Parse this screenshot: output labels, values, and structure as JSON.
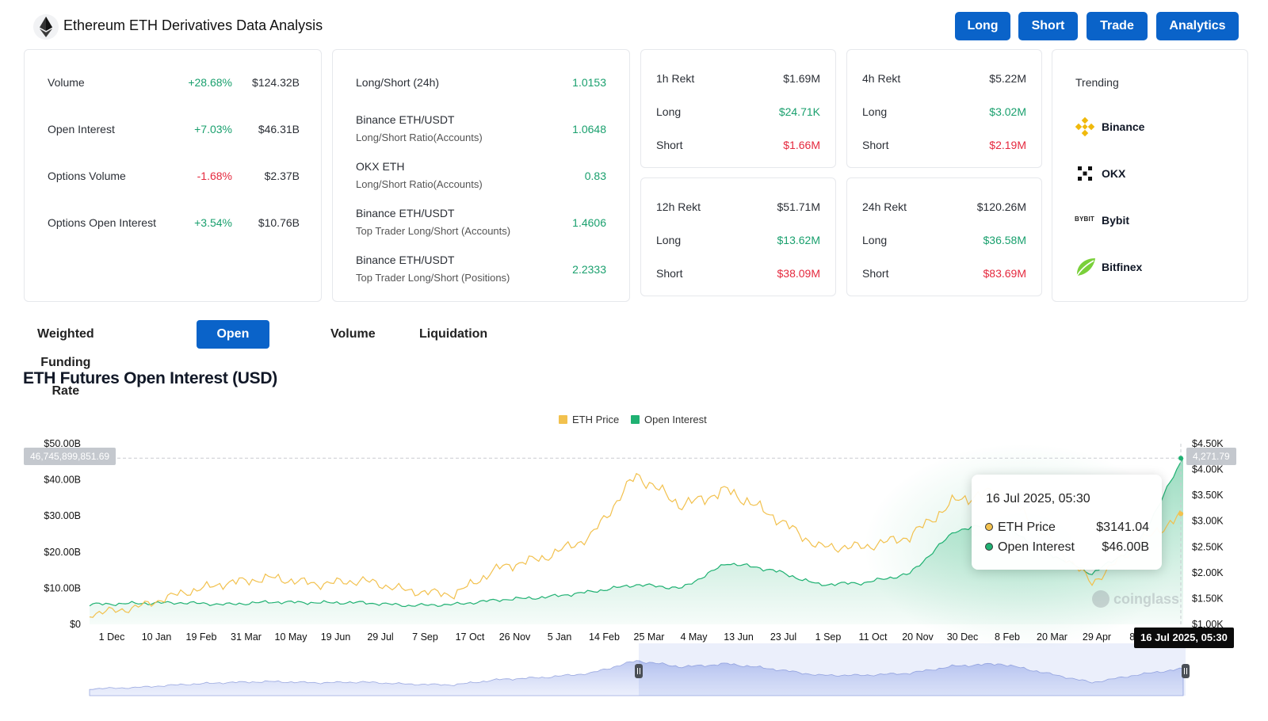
{
  "header": {
    "title": "Ethereum ETH Derivatives Data Analysis",
    "buttons": [
      {
        "label": "Long"
      },
      {
        "label": "Short"
      },
      {
        "label": "Trade"
      },
      {
        "label": "Analytics"
      }
    ]
  },
  "overview": [
    {
      "label": "Volume",
      "change": "+28.68%",
      "value": "$124.32B",
      "direction": "up"
    },
    {
      "label": "Open Interest",
      "change": "+7.03%",
      "value": "$46.31B",
      "direction": "up"
    },
    {
      "label": "Options Volume",
      "change": "-1.68%",
      "value": "$2.37B",
      "direction": "down"
    },
    {
      "label": "Options Open Interest",
      "change": "+3.54%",
      "value": "$10.76B",
      "direction": "up"
    }
  ],
  "ratios": [
    {
      "line1": "Long/Short (24h)",
      "line2": "",
      "value": "1.0153"
    },
    {
      "line1": "Binance ETH/USDT",
      "line2": "Long/Short Ratio(Accounts)",
      "value": "1.0648"
    },
    {
      "line1": "OKX ETH",
      "line2": "Long/Short Ratio(Accounts)",
      "value": "0.83"
    },
    {
      "line1": "Binance ETH/USDT",
      "line2": "Top Trader Long/Short (Accounts)",
      "value": "1.4606"
    },
    {
      "line1": "Binance ETH/USDT",
      "line2": "Top Trader Long/Short (Positions)",
      "value": "2.2333"
    }
  ],
  "rekt": [
    {
      "label": "1h Rekt",
      "total": "$1.69M",
      "long_label": "Long",
      "long": "$24.71K",
      "short_label": "Short",
      "short": "$1.66M"
    },
    {
      "label": "4h Rekt",
      "total": "$5.22M",
      "long_label": "Long",
      "long": "$3.02M",
      "short_label": "Short",
      "short": "$2.19M"
    },
    {
      "label": "12h Rekt",
      "total": "$51.71M",
      "long_label": "Long",
      "long": "$13.62M",
      "short_label": "Short",
      "short": "$38.09M"
    },
    {
      "label": "24h Rekt",
      "total": "$120.26M",
      "long_label": "Long",
      "long": "$36.58M",
      "short_label": "Short",
      "short": "$83.69M"
    }
  ],
  "trending": {
    "title": "Trending",
    "items": [
      {
        "name": "Binance",
        "icon": "binance-icon"
      },
      {
        "name": "OKX",
        "icon": "okx-icon"
      },
      {
        "name": "Bybit",
        "icon": "bybit-icon",
        "logo_text": "BYBIT"
      },
      {
        "name": "Bitfinex",
        "icon": "bitfinex-icon"
      }
    ]
  },
  "tabs": [
    {
      "label": "Weighted Funding Rate",
      "active": false
    },
    {
      "label": "Open Interest",
      "active": true
    },
    {
      "label": "Volume",
      "active": false
    },
    {
      "label": "Liquidation",
      "active": false
    }
  ],
  "chart_title": "ETH Futures Open Interest (USD)",
  "colors": {
    "eth_price": "#f2c14e",
    "open_interest": "#1fb172",
    "accent": "#0a63c9",
    "up": "#1aa06e",
    "down": "#e5293e"
  },
  "tooltip": {
    "date": "16 Jul 2025, 05:30",
    "rows": [
      {
        "label": "ETH Price",
        "value": "$3141.04"
      },
      {
        "label": "Open Interest",
        "value": "$46.00B"
      }
    ]
  },
  "crosshair": {
    "left_value": "46,745,899,851.69",
    "right_value": "4,271.79",
    "date": "16 Jul 2025, 05:30"
  },
  "watermark": "coinglass",
  "chart_data": {
    "type": "line",
    "x": [
      "1 Dec",
      "10 Jan",
      "19 Feb",
      "31 Mar",
      "10 May",
      "19 Jun",
      "29 Jul",
      "7 Sep",
      "17 Oct",
      "26 Nov",
      "5 Jan",
      "14 Feb",
      "25 Mar",
      "4 May",
      "13 Jun",
      "23 Jul",
      "1 Sep",
      "11 Oct",
      "20 Nov",
      "30 Dec",
      "8 Feb",
      "20 Mar",
      "29 Apr",
      "8 Jun",
      "16 Jul"
    ],
    "series": [
      {
        "name": "ETH Price",
        "axis": "right",
        "values": [
          1200,
          1320,
          1600,
          1800,
          1900,
          1780,
          1850,
          1650,
          1580,
          2100,
          2300,
          2700,
          3900,
          3300,
          3600,
          3100,
          2500,
          2500,
          2700,
          3400,
          3600,
          2700,
          1800,
          2550,
          3141
        ]
      },
      {
        "name": "Open Interest",
        "axis": "left",
        "values": [
          5.5,
          5.8,
          6.0,
          5.5,
          6.2,
          6.0,
          6.0,
          5.2,
          5.5,
          6.8,
          7.5,
          9.0,
          11.0,
          10.0,
          17.0,
          15.0,
          11.0,
          11.5,
          14.0,
          26.0,
          28.0,
          20.0,
          14.0,
          22.0,
          46.0
        ]
      }
    ],
    "left_axis": {
      "ticks": [
        "$0",
        "$10.00B",
        "$20.00B",
        "$30.00B",
        "$40.00B",
        "$50.00B"
      ],
      "range": [
        0,
        50
      ]
    },
    "right_axis": {
      "ticks": [
        "$1.00K",
        "$1.50K",
        "$2.00K",
        "$2.50K",
        "$3.00K",
        "$3.50K",
        "$4.00K",
        "$4.50K"
      ],
      "range": [
        1000,
        4500
      ]
    },
    "xlabel": "",
    "ylabel": "",
    "legend_position": "top-center",
    "grid": false
  }
}
